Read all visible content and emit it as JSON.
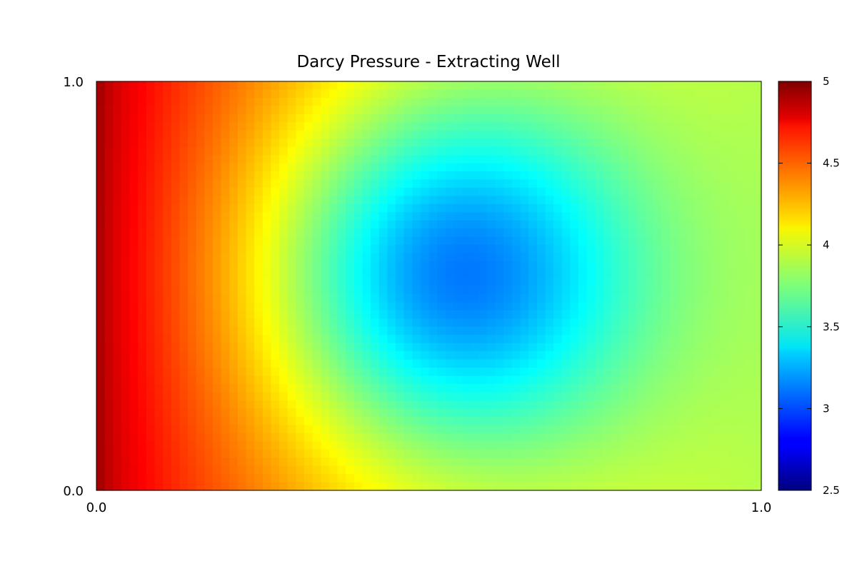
{
  "chart_data": {
    "type": "heatmap",
    "title": "Darcy Pressure - Extracting Well",
    "xlabel": "",
    "ylabel": "",
    "xlim": [
      0.0,
      1.0
    ],
    "ylim": [
      0.0,
      1.0
    ],
    "x_ticks": [
      "0.0",
      "1.0"
    ],
    "y_ticks": [
      "0.0",
      "1.0"
    ],
    "grid": false,
    "colormap": "jet",
    "colorbar": {
      "min": 2.5,
      "max": 5,
      "ticks": [
        {
          "value": 2.5,
          "label": "2.5"
        },
        {
          "value": 3,
          "label": "3"
        },
        {
          "value": 3.5,
          "label": "3.5"
        },
        {
          "value": 4,
          "label": "4"
        },
        {
          "value": 4.5,
          "label": "4.5"
        },
        {
          "value": 5,
          "label": "5"
        }
      ]
    },
    "grid_resolution": [
      80,
      50
    ],
    "field": {
      "left_boundary_value": 5.0,
      "right_boundary_value": 3.9,
      "well_center": [
        0.53,
        0.53
      ],
      "well_min_value": 3.12
    }
  }
}
